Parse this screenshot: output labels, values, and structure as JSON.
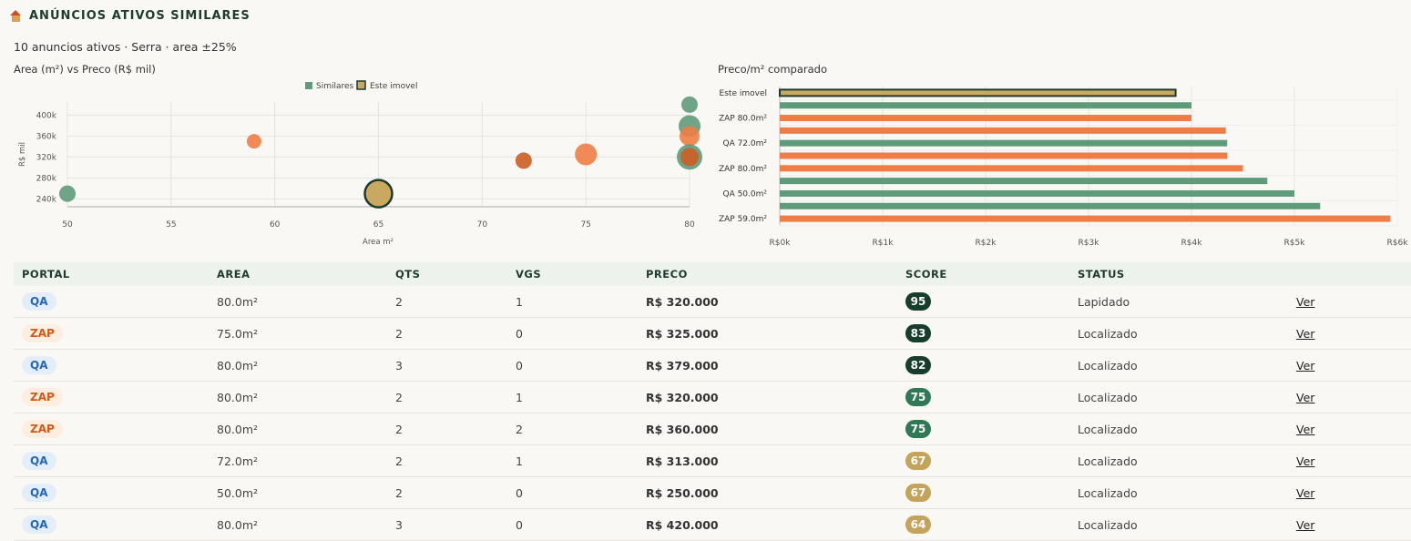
{
  "header": {
    "title": "ANÚNCIOS ATIVOS SIMILARES",
    "icon": "house-icon"
  },
  "subtitle": "10 anuncios ativos · Serra · area ±25%",
  "colors": {
    "similar": "#5f9a7a",
    "zap": "#ef7d45",
    "zap_dark": "#cc5e22",
    "subject": "#c9a95f",
    "subject_border": "#1d3b2e",
    "score_dark": "#173d2c",
    "score_mid": "#2f7a55",
    "score_gold": "#c4a45a"
  },
  "chart_data": [
    {
      "type": "scatter",
      "title": "Area (m²) vs Preco (R$ mil)",
      "xlabel": "Area m²",
      "ylabel": "R$ mil",
      "xlim": [
        50,
        80
      ],
      "ylim": [
        225,
        425
      ],
      "x_ticks": [
        "50",
        "55",
        "60",
        "65",
        "70",
        "75",
        "80"
      ],
      "y_ticks": [
        "240k",
        "280k",
        "320k",
        "360k",
        "400k"
      ],
      "legend": {
        "position": "top",
        "entries": [
          "Similares",
          "Este imovel"
        ]
      },
      "points": [
        {
          "x": 50,
          "y": 250,
          "color": "similar",
          "size": 9
        },
        {
          "x": 59,
          "y": 350,
          "color": "zap",
          "size": 8
        },
        {
          "x": 65,
          "y": 250,
          "color": "subject",
          "size": 15
        },
        {
          "x": 72,
          "y": 313,
          "color": "zap_dark",
          "size": 9
        },
        {
          "x": 75,
          "y": 325,
          "color": "zap",
          "size": 12
        },
        {
          "x": 80,
          "y": 420,
          "color": "similar",
          "size": 9
        },
        {
          "x": 80,
          "y": 379,
          "color": "similar",
          "size": 12
        },
        {
          "x": 80,
          "y": 360,
          "color": "zap",
          "size": 11
        },
        {
          "x": 80,
          "y": 320,
          "color": "similar",
          "size": 14
        },
        {
          "x": 80,
          "y": 320,
          "color": "zap_dark",
          "size": 10
        }
      ]
    },
    {
      "type": "bar",
      "orientation": "horizontal",
      "title": "Preco/m² comparado",
      "xlim": [
        0,
        6000
      ],
      "x_ticks": [
        "R$0k",
        "R$1k",
        "R$2k",
        "R$3k",
        "R$4k",
        "R$5k",
        "R$6k"
      ],
      "y_labels": [
        "Este imovel",
        "",
        "ZAP 80.0m²",
        "",
        "QA 72.0m²",
        "",
        "ZAP 80.0m²",
        "",
        "QA 50.0m²",
        "",
        "ZAP 59.0m²"
      ],
      "values": [
        3846,
        4000,
        4000,
        4333,
        4347,
        4346,
        4500,
        4737,
        5000,
        5250,
        5932
      ],
      "colors": [
        "subject",
        "similar",
        "zap",
        "zap",
        "similar",
        "zap",
        "zap",
        "similar",
        "similar",
        "similar",
        "zap"
      ]
    }
  ],
  "table": {
    "headers": [
      "PORTAL",
      "AREA",
      "QTS",
      "VGS",
      "PRECO",
      "SCORE",
      "STATUS",
      ""
    ],
    "rows": [
      {
        "portal": "QA",
        "portal_type": "qa",
        "area": "80.0m²",
        "qts": "2",
        "vgs": "1",
        "preco": "R$ 320.000",
        "score": "95",
        "score_level": "dark",
        "status": "Lapidado",
        "link": "Ver"
      },
      {
        "portal": "ZAP",
        "portal_type": "zap",
        "area": "75.0m²",
        "qts": "2",
        "vgs": "0",
        "preco": "R$ 325.000",
        "score": "83",
        "score_level": "dark",
        "status": "Localizado",
        "link": "Ver"
      },
      {
        "portal": "QA",
        "portal_type": "qa",
        "area": "80.0m²",
        "qts": "3",
        "vgs": "0",
        "preco": "R$ 379.000",
        "score": "82",
        "score_level": "dark",
        "status": "Localizado",
        "link": "Ver"
      },
      {
        "portal": "ZAP",
        "portal_type": "zap",
        "area": "80.0m²",
        "qts": "2",
        "vgs": "1",
        "preco": "R$ 320.000",
        "score": "75",
        "score_level": "mid",
        "status": "Localizado",
        "link": "Ver"
      },
      {
        "portal": "ZAP",
        "portal_type": "zap",
        "area": "80.0m²",
        "qts": "2",
        "vgs": "2",
        "preco": "R$ 360.000",
        "score": "75",
        "score_level": "mid",
        "status": "Localizado",
        "link": "Ver"
      },
      {
        "portal": "QA",
        "portal_type": "qa",
        "area": "72.0m²",
        "qts": "2",
        "vgs": "1",
        "preco": "R$ 313.000",
        "score": "67",
        "score_level": "gold",
        "status": "Localizado",
        "link": "Ver"
      },
      {
        "portal": "QA",
        "portal_type": "qa",
        "area": "50.0m²",
        "qts": "2",
        "vgs": "0",
        "preco": "R$ 250.000",
        "score": "67",
        "score_level": "gold",
        "status": "Localizado",
        "link": "Ver"
      },
      {
        "portal": "QA",
        "portal_type": "qa",
        "area": "80.0m²",
        "qts": "3",
        "vgs": "0",
        "preco": "R$ 420.000",
        "score": "64",
        "score_level": "gold",
        "status": "Localizado",
        "link": "Ver"
      }
    ]
  }
}
